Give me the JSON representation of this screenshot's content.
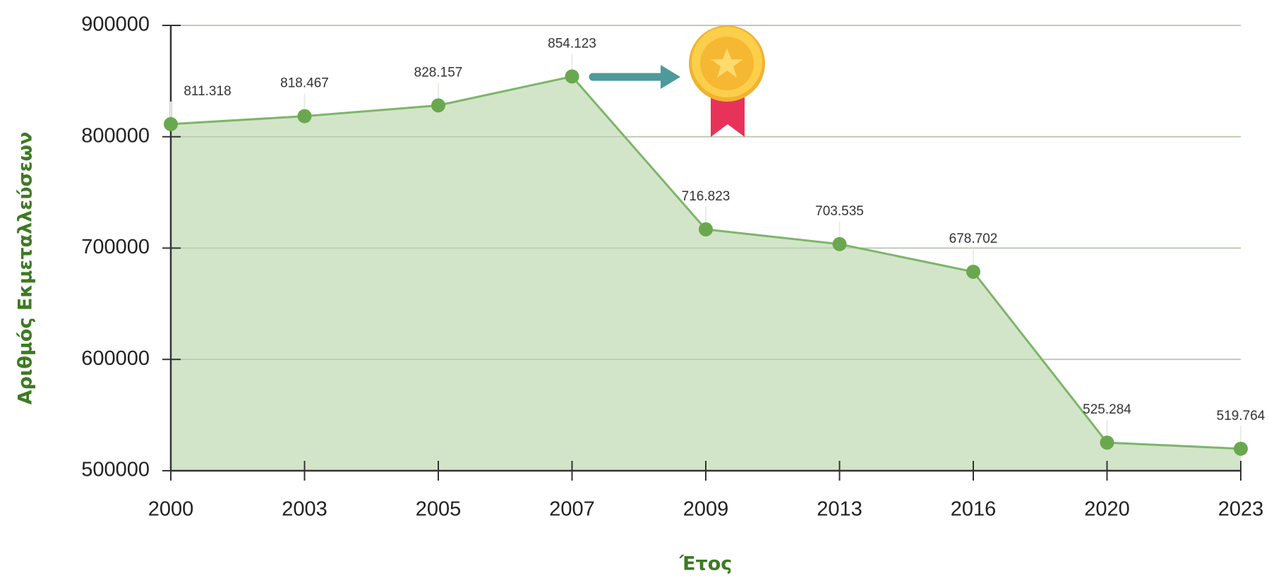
{
  "chart_data": {
    "type": "area",
    "x_label": "Έτος",
    "y_label": "Αριθμός Εκμεταλλεύσεων",
    "categories": [
      "2000",
      "2003",
      "2005",
      "2007",
      "2009",
      "2013",
      "2016",
      "2020",
      "2023"
    ],
    "values": [
      811318,
      818467,
      828157,
      854123,
      716823,
      703535,
      678702,
      525284,
      519764
    ],
    "value_labels": [
      "811.318",
      "818.467",
      "828.157",
      "854.123",
      "716.823",
      "703.535",
      "678.702",
      "525.284",
      "519.764"
    ],
    "color": "#6aa84f",
    "fill_color": "#d3e5c9",
    "ylim": [
      500000,
      900000
    ],
    "yticks": [
      500000,
      600000,
      700000,
      800000,
      900000
    ],
    "grid": true
  }
}
